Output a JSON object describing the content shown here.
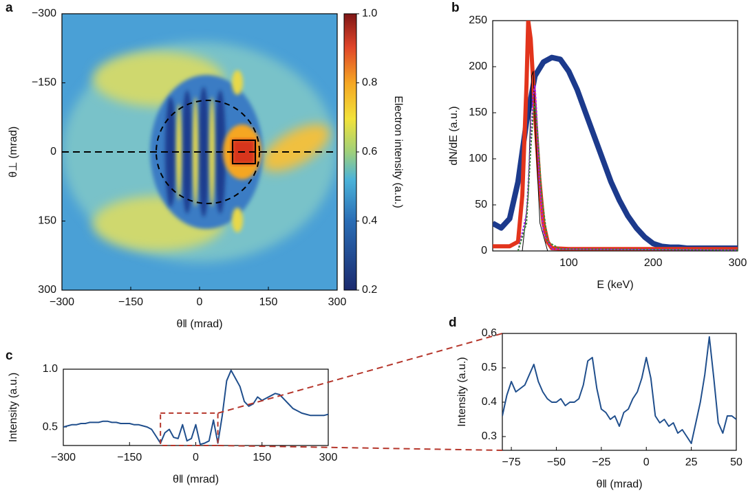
{
  "chart_data": [
    {
      "type": "image",
      "panel": "a",
      "xlabel": "θ‖ (mrad)",
      "ylabel": "θ⊥ (mrad)",
      "xlim": [
        -300,
        300
      ],
      "ylim": [
        -300,
        300
      ],
      "y_inverted": true,
      "xticks": [
        {
          "value": -300,
          "label": "−300"
        },
        {
          "value": -150,
          "label": "−150"
        },
        0,
        150,
        300
      ],
      "yticks": [
        {
          "value": -300,
          "label": "−300"
        },
        {
          "value": -150,
          "label": "−150"
        },
        0,
        150,
        300
      ],
      "colorbar": {
        "label": "Electron intensity (a.u.)",
        "lim": [
          0.2,
          1.0
        ],
        "ticks": [
          0.2,
          0.4,
          0.6,
          0.8,
          {
            "value": 1,
            "label": "1.0"
          }
        ]
      }
    },
    {
      "type": "line",
      "panel": "b",
      "xlabel": "E (keV)",
      "ylabel": "dN/dE (a.u.)",
      "xlim": [
        10,
        300
      ],
      "ylim": [
        0,
        250
      ],
      "xticks": [
        100,
        200,
        300
      ],
      "yticks": [
        0,
        50,
        100,
        150,
        200,
        250
      ],
      "series": [
        {
          "color": "#1c3a8c",
          "width": 8,
          "x": [
            10,
            20,
            30,
            40,
            50,
            60,
            70,
            80,
            90,
            100,
            110,
            120,
            130,
            140,
            150,
            160,
            170,
            180,
            190,
            200,
            210,
            220,
            230,
            240,
            250,
            260,
            270,
            280,
            290,
            300
          ],
          "values": [
            30,
            25,
            35,
            75,
            140,
            190,
            205,
            210,
            208,
            195,
            175,
            150,
            125,
            100,
            75,
            55,
            38,
            25,
            15,
            8,
            5,
            4,
            4,
            3,
            3,
            3,
            3,
            3,
            3,
            3
          ]
        },
        {
          "color": "#e2341c",
          "width": 6,
          "x": [
            10,
            30,
            40,
            45,
            50,
            52,
            55,
            60,
            65,
            70,
            75,
            80,
            100,
            150,
            200,
            300
          ],
          "values": [
            5,
            5,
            10,
            60,
            180,
            250,
            230,
            150,
            80,
            30,
            10,
            3,
            2,
            2,
            2,
            2
          ]
        },
        {
          "color": "#000000",
          "width": 1,
          "x": [
            45,
            52,
            56,
            58,
            61,
            66,
            75,
            300
          ],
          "values": [
            0,
            60,
            190,
            195,
            120,
            30,
            0,
            0
          ]
        },
        {
          "color": "#a020f0",
          "width": 2,
          "dash": true,
          "x": [
            40,
            50,
            55,
            58,
            60,
            62,
            65,
            70,
            80,
            300
          ],
          "values": [
            0,
            40,
            120,
            170,
            180,
            150,
            80,
            20,
            2,
            1
          ]
        },
        {
          "color": "#3a8a3a",
          "width": 2,
          "dash": true,
          "x": [
            40,
            50,
            55,
            58,
            60,
            63,
            68,
            75,
            90,
            300
          ],
          "values": [
            0,
            30,
            110,
            150,
            160,
            130,
            60,
            10,
            2,
            1
          ]
        }
      ]
    },
    {
      "type": "line",
      "panel": "c",
      "xlabel": "θ‖ (mrad)",
      "ylabel": "Intensity (a.u.)",
      "xlim": [
        -300,
        300
      ],
      "ylim": [
        0.34,
        1.0
      ],
      "xticks": [
        {
          "value": -300,
          "label": "−300"
        },
        {
          "value": -150,
          "label": "−150"
        },
        0,
        150,
        300
      ],
      "yticks": [
        0.5,
        {
          "value": 1,
          "label": "1.0"
        }
      ],
      "zoom": {
        "xlim": [
          -80,
          50
        ],
        "ylim": [
          0.34,
          0.62
        ],
        "color": "#b5352a"
      },
      "series": [
        {
          "color": "#1f4e8c",
          "width": 2,
          "x": [
            -300,
            -290,
            -280,
            -270,
            -260,
            -250,
            -240,
            -230,
            -220,
            -210,
            -200,
            -190,
            -180,
            -170,
            -160,
            -150,
            -140,
            -130,
            -120,
            -110,
            -100,
            -90,
            -80,
            -70,
            -60,
            -50,
            -40,
            -30,
            -20,
            -10,
            0,
            10,
            20,
            30,
            40,
            50,
            60,
            70,
            80,
            90,
            100,
            110,
            120,
            130,
            140,
            150,
            160,
            170,
            180,
            190,
            200,
            210,
            220,
            230,
            240,
            250,
            260,
            270,
            280,
            290,
            300
          ],
          "values": [
            0.5,
            0.51,
            0.52,
            0.52,
            0.53,
            0.53,
            0.54,
            0.54,
            0.54,
            0.55,
            0.55,
            0.54,
            0.54,
            0.53,
            0.53,
            0.53,
            0.52,
            0.52,
            0.51,
            0.5,
            0.48,
            0.42,
            0.36,
            0.45,
            0.48,
            0.41,
            0.4,
            0.52,
            0.38,
            0.4,
            0.52,
            0.35,
            0.36,
            0.38,
            0.56,
            0.36,
            0.6,
            0.9,
            0.99,
            0.92,
            0.85,
            0.72,
            0.68,
            0.7,
            0.76,
            0.73,
            0.75,
            0.77,
            0.79,
            0.78,
            0.74,
            0.7,
            0.66,
            0.64,
            0.62,
            0.61,
            0.6,
            0.6,
            0.6,
            0.6,
            0.61
          ]
        }
      ]
    },
    {
      "type": "line",
      "panel": "d",
      "xlabel": "θ‖ (mrad)",
      "ylabel": "Intensity (a.u.)",
      "xlim": [
        -80,
        50
      ],
      "ylim": [
        0.26,
        0.6
      ],
      "xticks": [
        {
          "value": -75,
          "label": "−75"
        },
        {
          "value": -50,
          "label": "−50"
        },
        {
          "value": -25,
          "label": "−25"
        },
        0,
        25,
        50
      ],
      "yticks": [
        0.3,
        0.4,
        0.5,
        0.6
      ],
      "series": [
        {
          "color": "#1f4e8c",
          "width": 2,
          "x": [
            -80,
            -77.5,
            -75,
            -72.5,
            -70,
            -67.5,
            -65,
            -62.5,
            -60,
            -57.5,
            -55,
            -52.5,
            -50,
            -47.5,
            -45,
            -42.5,
            -40,
            -37.5,
            -35,
            -32.5,
            -30,
            -27.5,
            -25,
            -22.5,
            -20,
            -17.5,
            -15,
            -12.5,
            -10,
            -7.5,
            -5,
            -2.5,
            0,
            2.5,
            5,
            7.5,
            10,
            12.5,
            15,
            17.5,
            20,
            22.5,
            25,
            27.5,
            30,
            32.5,
            35,
            37.5,
            40,
            42.5,
            45,
            47.5,
            50
          ],
          "values": [
            0.36,
            0.42,
            0.46,
            0.43,
            0.44,
            0.45,
            0.48,
            0.51,
            0.46,
            0.43,
            0.41,
            0.4,
            0.4,
            0.41,
            0.39,
            0.4,
            0.4,
            0.41,
            0.45,
            0.52,
            0.53,
            0.44,
            0.38,
            0.37,
            0.35,
            0.36,
            0.33,
            0.37,
            0.38,
            0.41,
            0.43,
            0.47,
            0.53,
            0.47,
            0.36,
            0.34,
            0.35,
            0.33,
            0.34,
            0.31,
            0.32,
            0.3,
            0.28,
            0.34,
            0.4,
            0.48,
            0.59,
            0.47,
            0.34,
            0.31,
            0.36,
            0.36,
            0.35
          ]
        }
      ]
    }
  ]
}
